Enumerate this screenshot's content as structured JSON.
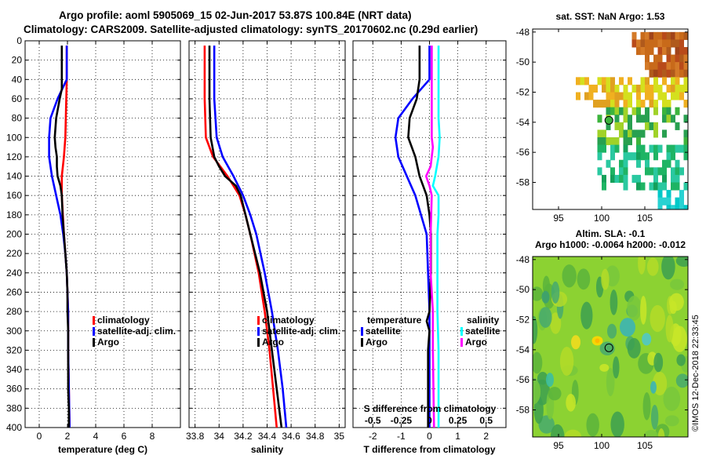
{
  "header": {
    "title_line1": "Argo profile: aoml 5905069_15 02-Jun-2017 53.87S 100.84E (NRT data)",
    "title_line2": "Climatology: CARS2009. Satellite-adjusted climatology: synTS_20170602.nc (0.29d earlier)"
  },
  "colors": {
    "climatology": "#ff0000",
    "satellite": "#0000ff",
    "argo": "#000000",
    "sal_satellite": "#00ffff",
    "sal_argo": "#ff00ff"
  },
  "chart_data": [
    {
      "id": "temperature",
      "type": "line",
      "xlabel": "temperature (deg C)",
      "ylabel": "depth",
      "xlim": [
        -1,
        10
      ],
      "ylim": [
        0,
        400
      ],
      "xticks": [
        0,
        2,
        4,
        6,
        8
      ],
      "xtick_labels": [
        "0",
        "2",
        "4",
        "6",
        "8"
      ],
      "yticks": [
        0,
        20,
        40,
        60,
        80,
        100,
        120,
        140,
        160,
        180,
        200,
        220,
        240,
        260,
        280,
        300,
        320,
        340,
        360,
        380,
        400
      ],
      "ytick_labels": [
        "0",
        "20",
        "40",
        "60",
        "80",
        "100",
        "120",
        "140",
        "160",
        "180",
        "200",
        "220",
        "240",
        "260",
        "280",
        "300",
        "320",
        "340",
        "360",
        "380",
        "400"
      ],
      "grid": true,
      "legend": [
        "climatology",
        "satellite-adj. clim.",
        "Argo"
      ],
      "series": [
        {
          "name": "climatology",
          "color": "#ff0000",
          "depth": [
            5,
            40,
            70,
            100,
            120,
            140,
            160,
            200,
            240,
            280,
            320,
            360,
            400
          ],
          "values": [
            1.95,
            1.95,
            1.9,
            1.85,
            1.75,
            1.6,
            1.6,
            1.75,
            1.95,
            2.05,
            2.05,
            2.1,
            2.15
          ]
        },
        {
          "name": "satellite-adj. clim.",
          "color": "#0000ff",
          "depth": [
            5,
            40,
            60,
            80,
            100,
            120,
            140,
            160,
            180,
            200,
            220,
            240,
            260,
            280,
            320,
            360,
            400
          ],
          "values": [
            1.95,
            1.95,
            1.3,
            0.8,
            0.7,
            0.7,
            0.9,
            1.2,
            1.5,
            1.7,
            1.85,
            1.95,
            2.0,
            2.05,
            2.05,
            2.1,
            2.15
          ]
        },
        {
          "name": "Argo",
          "color": "#000000",
          "depth": [
            5,
            40,
            50,
            60,
            80,
            100,
            110,
            120,
            130,
            140,
            150,
            160,
            180,
            200,
            220,
            240,
            260,
            280,
            300,
            320,
            340,
            360,
            380,
            400
          ],
          "values": [
            1.6,
            1.6,
            1.6,
            1.45,
            1.2,
            1.1,
            1.15,
            1.25,
            1.25,
            1.3,
            1.5,
            1.6,
            1.65,
            1.75,
            1.85,
            1.95,
            2.0,
            2.0,
            2.05,
            2.05,
            2.05,
            2.05,
            2.1,
            2.1
          ]
        }
      ]
    },
    {
      "id": "salinity",
      "type": "line",
      "xlabel": "salinity",
      "xlim": [
        33.75,
        35.05
      ],
      "ylim": [
        0,
        400
      ],
      "xticks": [
        33.8,
        34.0,
        34.2,
        34.4,
        34.6,
        34.8,
        35.0
      ],
      "xtick_labels": [
        "33.8",
        "34",
        "34.2",
        "34.4",
        "34.6",
        "34.8",
        "35"
      ],
      "grid": true,
      "legend": [
        "climatology",
        "satellite-adj. clim.",
        "Argo"
      ],
      "series": [
        {
          "name": "climatology",
          "color": "#ff0000",
          "depth": [
            5,
            60,
            100,
            120,
            140,
            160,
            180,
            200,
            240,
            280,
            320,
            360,
            400
          ],
          "values": [
            33.88,
            33.88,
            33.89,
            33.95,
            34.07,
            34.17,
            34.22,
            34.26,
            34.33,
            34.38,
            34.42,
            34.45,
            34.48
          ]
        },
        {
          "name": "satellite-adj. clim.",
          "color": "#0000ff",
          "depth": [
            5,
            60,
            100,
            120,
            140,
            160,
            180,
            200,
            240,
            280,
            320,
            360,
            400
          ],
          "values": [
            33.96,
            33.96,
            33.98,
            34.03,
            34.12,
            34.2,
            34.26,
            34.31,
            34.38,
            34.44,
            34.49,
            34.53,
            34.56
          ]
        },
        {
          "name": "Argo",
          "color": "#000000",
          "depth": [
            5,
            60,
            100,
            120,
            130,
            140,
            150,
            160,
            180,
            200,
            220,
            240,
            260,
            280,
            300,
            320,
            340,
            360,
            400
          ],
          "values": [
            33.92,
            33.92,
            33.93,
            33.96,
            34.0,
            34.05,
            34.14,
            34.18,
            34.22,
            34.26,
            34.3,
            34.34,
            34.37,
            34.4,
            34.42,
            34.44,
            34.46,
            34.48,
            34.52
          ]
        }
      ]
    },
    {
      "id": "difference",
      "type": "line",
      "xlabel": "T difference from climatology",
      "xlabel_top": "S difference from climatology",
      "xlim": [
        -2.7,
        2.7
      ],
      "ylim": [
        0,
        400
      ],
      "xticks": [
        -2,
        -1,
        0,
        1,
        2
      ],
      "xtick_labels": [
        "-2",
        "-1",
        "0",
        "1",
        "2"
      ],
      "sticks": [
        -0.5,
        -0.25,
        0,
        0.25,
        0.5
      ],
      "stick_labels": [
        "-0.5",
        "-0.25",
        "0",
        "0.25",
        "0.5"
      ],
      "s_scale": 4,
      "grid": true,
      "legend_left_title": "temperature",
      "legend_right_title": "salinity",
      "legend": [
        "satellite",
        "Argo",
        "satellite",
        "Argo"
      ],
      "series": [
        {
          "name": "T satellite",
          "color": "#0000ff",
          "depth": [
            5,
            40,
            60,
            80,
            100,
            120,
            140,
            160,
            180,
            200,
            240,
            280,
            320,
            400
          ],
          "values": [
            0.0,
            0.0,
            -0.6,
            -1.1,
            -1.2,
            -1.1,
            -0.8,
            -0.5,
            -0.3,
            -0.1,
            -0.05,
            0.0,
            0.0,
            0.0
          ]
        },
        {
          "name": "T Argo",
          "color": "#000000",
          "depth": [
            5,
            40,
            60,
            80,
            100,
            120,
            140,
            160,
            180,
            200,
            240,
            280,
            290,
            300,
            320,
            400
          ],
          "values": [
            -0.35,
            -0.35,
            -0.45,
            -0.7,
            -0.75,
            -0.5,
            -0.35,
            -0.1,
            0.0,
            0.05,
            0.05,
            0.0,
            -0.1,
            0.0,
            -0.05,
            -0.05
          ]
        },
        {
          "name": "S satellite",
          "color": "#00ffff",
          "depth": [
            5,
            80,
            100,
            120,
            140,
            150,
            160,
            180,
            200,
            240,
            280,
            320,
            400
          ],
          "values": [
            0.08,
            0.08,
            0.09,
            0.08,
            0.05,
            0.03,
            0.08,
            0.08,
            0.07,
            0.07,
            0.07,
            0.08,
            0.08
          ]
        },
        {
          "name": "S Argo",
          "color": "#ff00ff",
          "depth": [
            5,
            100,
            110,
            120,
            130,
            140,
            150,
            160,
            200,
            240,
            280,
            320,
            400
          ],
          "values": [
            0.02,
            0.02,
            0.03,
            0.02,
            0.01,
            -0.03,
            0.0,
            0.02,
            0.01,
            0.01,
            0.03,
            0.03,
            0.04
          ]
        }
      ]
    },
    {
      "id": "sst_map",
      "type": "heatmap",
      "title": "sat. SST: NaN Argo: 1.53",
      "xlim": [
        92,
        110
      ],
      "ylim": [
        -59.8,
        -47.8
      ],
      "xticks": [
        95,
        100,
        105
      ],
      "xtick_labels": [
        "95",
        "100",
        "105"
      ],
      "yticks": [
        -48,
        -50,
        -52,
        -54,
        -56,
        -58
      ],
      "ytick_labels": [
        "-48",
        "-50",
        "-52",
        "-54",
        "-56",
        "-58"
      ],
      "marker": {
        "lon": 100.84,
        "lat": -53.87
      }
    },
    {
      "id": "sla_map",
      "type": "heatmap",
      "title": "Altim. SLA: -0.1",
      "subtitle": "Argo h1000: -0.0064 h2000: -0.012",
      "xlim": [
        92,
        110
      ],
      "ylim": [
        -59.8,
        -47.8
      ],
      "xticks": [
        95,
        100,
        105
      ],
      "xtick_labels": [
        "95",
        "100",
        "105"
      ],
      "yticks": [
        -48,
        -50,
        -52,
        -54,
        -56,
        -58
      ],
      "ytick_labels": [
        "-48",
        "-50",
        "-52",
        "-54",
        "-56",
        "-58"
      ],
      "marker": {
        "lon": 100.84,
        "lat": -53.87
      }
    }
  ],
  "footer": {
    "stamp": "©IMOS 12-Dec-2018 22:33:45"
  }
}
